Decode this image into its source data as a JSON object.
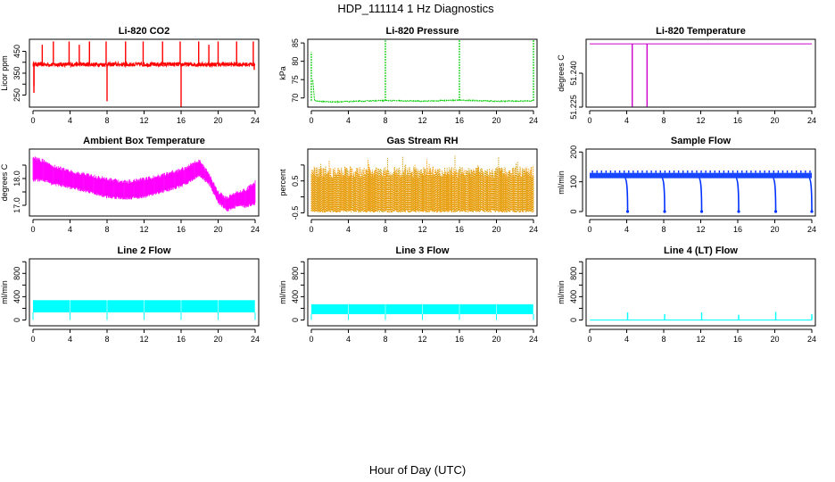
{
  "figure": {
    "title": "HDP_111114  1 Hz Diagnostics",
    "xlabel": "Hour of Day (UTC)"
  },
  "chart_data": [
    {
      "type": "line",
      "title": "Li-820 CO2",
      "ylabel": "Licor ppm",
      "color": "#ff0000",
      "xlim": [
        0,
        24
      ],
      "xticks": [
        0,
        4,
        8,
        12,
        16,
        20,
        24
      ],
      "ylim": [
        195,
        505
      ],
      "yticks": [
        250,
        300,
        350,
        400,
        450
      ],
      "yticklabels": [
        "250",
        "",
        "350",
        "",
        "450"
      ],
      "pattern": "baseline-spikes",
      "baseline": 390,
      "noise": 10,
      "spikes_up": [
        [
          0.1,
          290
        ],
        [
          1.0,
          480
        ],
        [
          2.2,
          495
        ],
        [
          3.9,
          495
        ],
        [
          5.0,
          480
        ],
        [
          6.1,
          495
        ],
        [
          7.9,
          495
        ],
        [
          10.0,
          495
        ],
        [
          11.9,
          495
        ],
        [
          14.0,
          495
        ],
        [
          15.9,
          495
        ],
        [
          17.9,
          495
        ],
        [
          19.0,
          480
        ],
        [
          20.0,
          495
        ],
        [
          22.0,
          495
        ],
        [
          23.8,
          495
        ]
      ],
      "spikes_down": [
        [
          0.1,
          260
        ],
        [
          8.0,
          222
        ],
        [
          16.0,
          195
        ],
        [
          23.9,
          365
        ]
      ]
    },
    {
      "type": "line",
      "title": "Li-820 Pressure",
      "ylabel": "kPa",
      "color": "#00cc00",
      "xlim": [
        0,
        24
      ],
      "xticks": [
        0,
        4,
        8,
        12,
        16,
        20,
        24
      ],
      "ylim": [
        67.5,
        86
      ],
      "yticks": [
        70,
        75,
        80,
        85
      ],
      "yticklabels": [
        "70",
        "75",
        "80",
        "85"
      ],
      "pattern": "pressure",
      "baseline_points": [
        [
          0.15,
          75.0
        ],
        [
          0.35,
          69.2
        ],
        [
          2,
          68.9
        ],
        [
          8,
          69.3
        ],
        [
          12,
          69.1
        ],
        [
          16,
          69.4
        ],
        [
          20,
          69.1
        ],
        [
          24,
          69.2
        ]
      ],
      "spikes_up": [
        [
          0.0,
          82.5
        ],
        [
          8.0,
          86.0
        ],
        [
          16.0,
          86.0
        ],
        [
          24.0,
          86.0
        ]
      ]
    },
    {
      "type": "line",
      "title": "Li-820 Temperature",
      "ylabel": "degrees C",
      "color": "#cc00cc",
      "xlim": [
        0,
        24
      ],
      "xticks": [
        0,
        4,
        8,
        12,
        16,
        20,
        24
      ],
      "ylim": [
        51.225,
        51.255
      ],
      "yticks": [
        51.225,
        51.24
      ],
      "yticklabels": [
        "51.225",
        "51.240"
      ],
      "pattern": "flat-drops",
      "baseline": 51.253,
      "spikes_down": [
        [
          4.6,
          51.225
        ],
        [
          6.2,
          51.225
        ]
      ]
    },
    {
      "type": "line",
      "title": "Ambient Box Temperature",
      "ylabel": "degrees C",
      "color": "#ff00ff",
      "xlim": [
        0,
        24
      ],
      "xticks": [
        0,
        4,
        8,
        12,
        16,
        20,
        24
      ],
      "ylim": [
        16.6,
        19.1
      ],
      "yticks": [
        17.0,
        17.5,
        18.0,
        18.5
      ],
      "yticklabels": [
        "17.0",
        "",
        "18.0",
        ""
      ],
      "pattern": "band",
      "band": [
        [
          0,
          17.85,
          18.85
        ],
        [
          1,
          17.9,
          18.75
        ],
        [
          2,
          17.75,
          18.55
        ],
        [
          4,
          17.6,
          18.35
        ],
        [
          6,
          17.45,
          18.2
        ],
        [
          8,
          17.25,
          18.05
        ],
        [
          10,
          17.2,
          17.95
        ],
        [
          12,
          17.25,
          18.05
        ],
        [
          14,
          17.45,
          18.2
        ],
        [
          16,
          17.65,
          18.4
        ],
        [
          18,
          18.05,
          18.75
        ],
        [
          19,
          17.75,
          18.25
        ],
        [
          20,
          17.05,
          17.55
        ],
        [
          21,
          16.75,
          17.35
        ],
        [
          22,
          16.9,
          17.55
        ],
        [
          23,
          16.9,
          17.65
        ],
        [
          24,
          17.0,
          17.95
        ]
      ]
    },
    {
      "type": "line",
      "title": "Gas Stream RH",
      "ylabel": "percent",
      "color": "#ff9900",
      "color2": "#cc9900",
      "xlim": [
        0,
        24
      ],
      "xticks": [
        0,
        4,
        8,
        12,
        16,
        20,
        24
      ],
      "ylim": [
        -0.6,
        1.5
      ],
      "yticks": [
        -0.5,
        0.0,
        0.5,
        1.0
      ],
      "yticklabels": [
        "-0.5",
        "",
        "0.5",
        ""
      ],
      "pattern": "noise-band",
      "low": -0.4,
      "high": 0.95,
      "jitter": 0.15
    },
    {
      "type": "line",
      "title": "Sample Flow",
      "ylabel": "ml/min",
      "color": "#0033ff",
      "xlim": [
        0,
        24
      ],
      "xticks": [
        0,
        4,
        8,
        12,
        16,
        20,
        24
      ],
      "ylim": [
        -15,
        210
      ],
      "yticks": [
        0,
        100,
        200
      ],
      "yticklabels": [
        "0",
        "100",
        "200"
      ],
      "pattern": "sample-flow",
      "baseline": 112,
      "upper": 130,
      "spikes_down": [
        [
          4.1,
          0
        ],
        [
          8.1,
          0
        ],
        [
          12.1,
          0
        ],
        [
          16.1,
          0
        ],
        [
          20.1,
          0
        ],
        [
          24.0,
          0
        ]
      ]
    },
    {
      "type": "area",
      "title": "Line 2 Flow",
      "ylabel": "ml/min",
      "color": "#00ffff",
      "xlim": [
        0,
        24
      ],
      "xticks": [
        0,
        4,
        8,
        12,
        16,
        20,
        24
      ],
      "ylim": [
        -100,
        1050
      ],
      "yticks": [
        0,
        200,
        400,
        600,
        800,
        1000
      ],
      "yticklabels": [
        "0",
        "",
        "400",
        "",
        "800",
        ""
      ],
      "pattern": "cyan-band",
      "low": 130,
      "high": 340,
      "gaps": [
        4,
        8,
        12,
        16,
        20,
        24
      ],
      "gap_low": 0
    },
    {
      "type": "area",
      "title": "Line 3 Flow",
      "ylabel": "ml/min",
      "color": "#00ffff",
      "xlim": [
        0,
        24
      ],
      "xticks": [
        0,
        4,
        8,
        12,
        16,
        20,
        24
      ],
      "ylim": [
        -100,
        1050
      ],
      "yticks": [
        0,
        200,
        400,
        600,
        800,
        1000
      ],
      "yticklabels": [
        "0",
        "",
        "400",
        "",
        "800",
        ""
      ],
      "pattern": "cyan-band",
      "low": 100,
      "high": 270,
      "gaps": [
        4,
        8,
        12,
        16,
        20,
        24
      ],
      "gap_low": 0
    },
    {
      "type": "line",
      "title": "Line 4 (LT) Flow",
      "ylabel": "ml/min",
      "color": "#00ffff",
      "xlim": [
        0,
        24
      ],
      "xticks": [
        0,
        4,
        8,
        12,
        16,
        20,
        24
      ],
      "ylim": [
        -100,
        1050
      ],
      "yticks": [
        0,
        200,
        400,
        600,
        800,
        1000
      ],
      "yticklabels": [
        "0",
        "",
        "400",
        "",
        "800",
        ""
      ],
      "pattern": "baseline-spikes",
      "baseline": 0,
      "noise": 0,
      "spikes_up": [
        [
          4.1,
          130
        ],
        [
          8.1,
          100
        ],
        [
          12.1,
          130
        ],
        [
          16.1,
          90
        ],
        [
          20.1,
          140
        ],
        [
          24.0,
          100
        ]
      ],
      "spikes_down": []
    }
  ]
}
